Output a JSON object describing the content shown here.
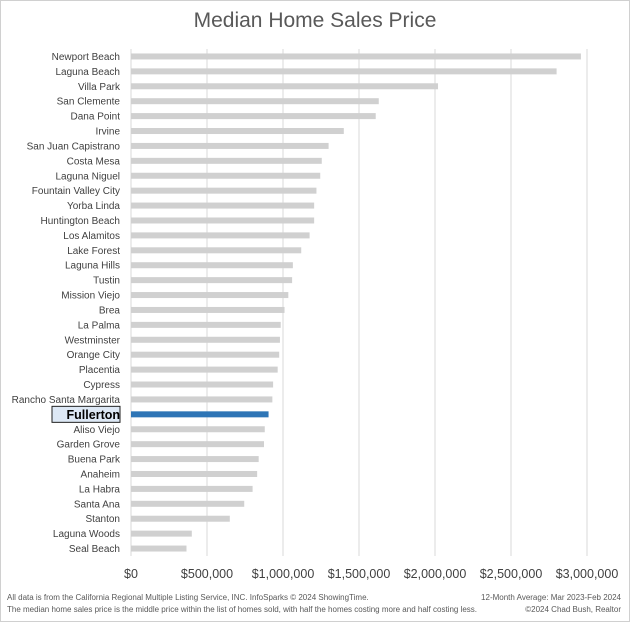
{
  "chart_data": {
    "type": "bar",
    "orientation": "horizontal",
    "title": "Median Home Sales Price",
    "categories": [
      "Newport Beach",
      "Laguna Beach",
      "Villa Park",
      "San Clemente",
      "Dana Point",
      "Irvine",
      "San Juan Capistrano",
      "Costa Mesa",
      "Laguna Niguel",
      "Fountain Valley City",
      "Yorba Linda",
      "Huntington Beach",
      "Los Alamitos",
      "Lake Forest",
      "Laguna Hills",
      "Tustin",
      "Mission Viejo",
      "Brea",
      "La Palma",
      "Westminster",
      "Orange City",
      "Placentia",
      "Cypress",
      "Rancho Santa Margarita",
      "Fullerton",
      "Aliso Viejo",
      "Garden Grove",
      "Buena Park",
      "Anaheim",
      "La Habra",
      "Santa Ana",
      "Stanton",
      "Laguna Woods",
      "Seal Beach"
    ],
    "values": [
      2960000,
      2800000,
      2020000,
      1630000,
      1610000,
      1400000,
      1300000,
      1255000,
      1245000,
      1220000,
      1205000,
      1205000,
      1175000,
      1120000,
      1065000,
      1060000,
      1035000,
      1010000,
      985000,
      980000,
      975000,
      965000,
      935000,
      930000,
      905000,
      880000,
      875000,
      840000,
      830000,
      800000,
      745000,
      650000,
      400000,
      365000
    ],
    "highlight": "Fullerton",
    "xlim": [
      0,
      3000000
    ],
    "xticks": [
      0,
      500000,
      1000000,
      1500000,
      2000000,
      2500000,
      3000000
    ],
    "xtick_labels": [
      "$0",
      "$500,000",
      "$1,000,000",
      "$1,500,000",
      "$2,000,000",
      "$2,500,000",
      "$3,000,000"
    ],
    "grid": "vertical",
    "colors": {
      "bar": "#d0d0d0",
      "highlight": "#2e75b6",
      "highlight_label_bg": "#dde8f5",
      "grid": "#d9d9d9",
      "text": "#404040"
    }
  },
  "footer": {
    "left_line1": "All data is from the California Regional Multiple Listing Service, INC. InfoSparks © 2024 ShowingTime.",
    "left_line2": "The median home sales price is the middle price within the list of homes sold, with half the homes costing more and half costing less.",
    "right_line1": "12-Month Average: Mar 2023-Feb 2024",
    "right_line2": "©2024 Chad Bush, Realtor"
  }
}
